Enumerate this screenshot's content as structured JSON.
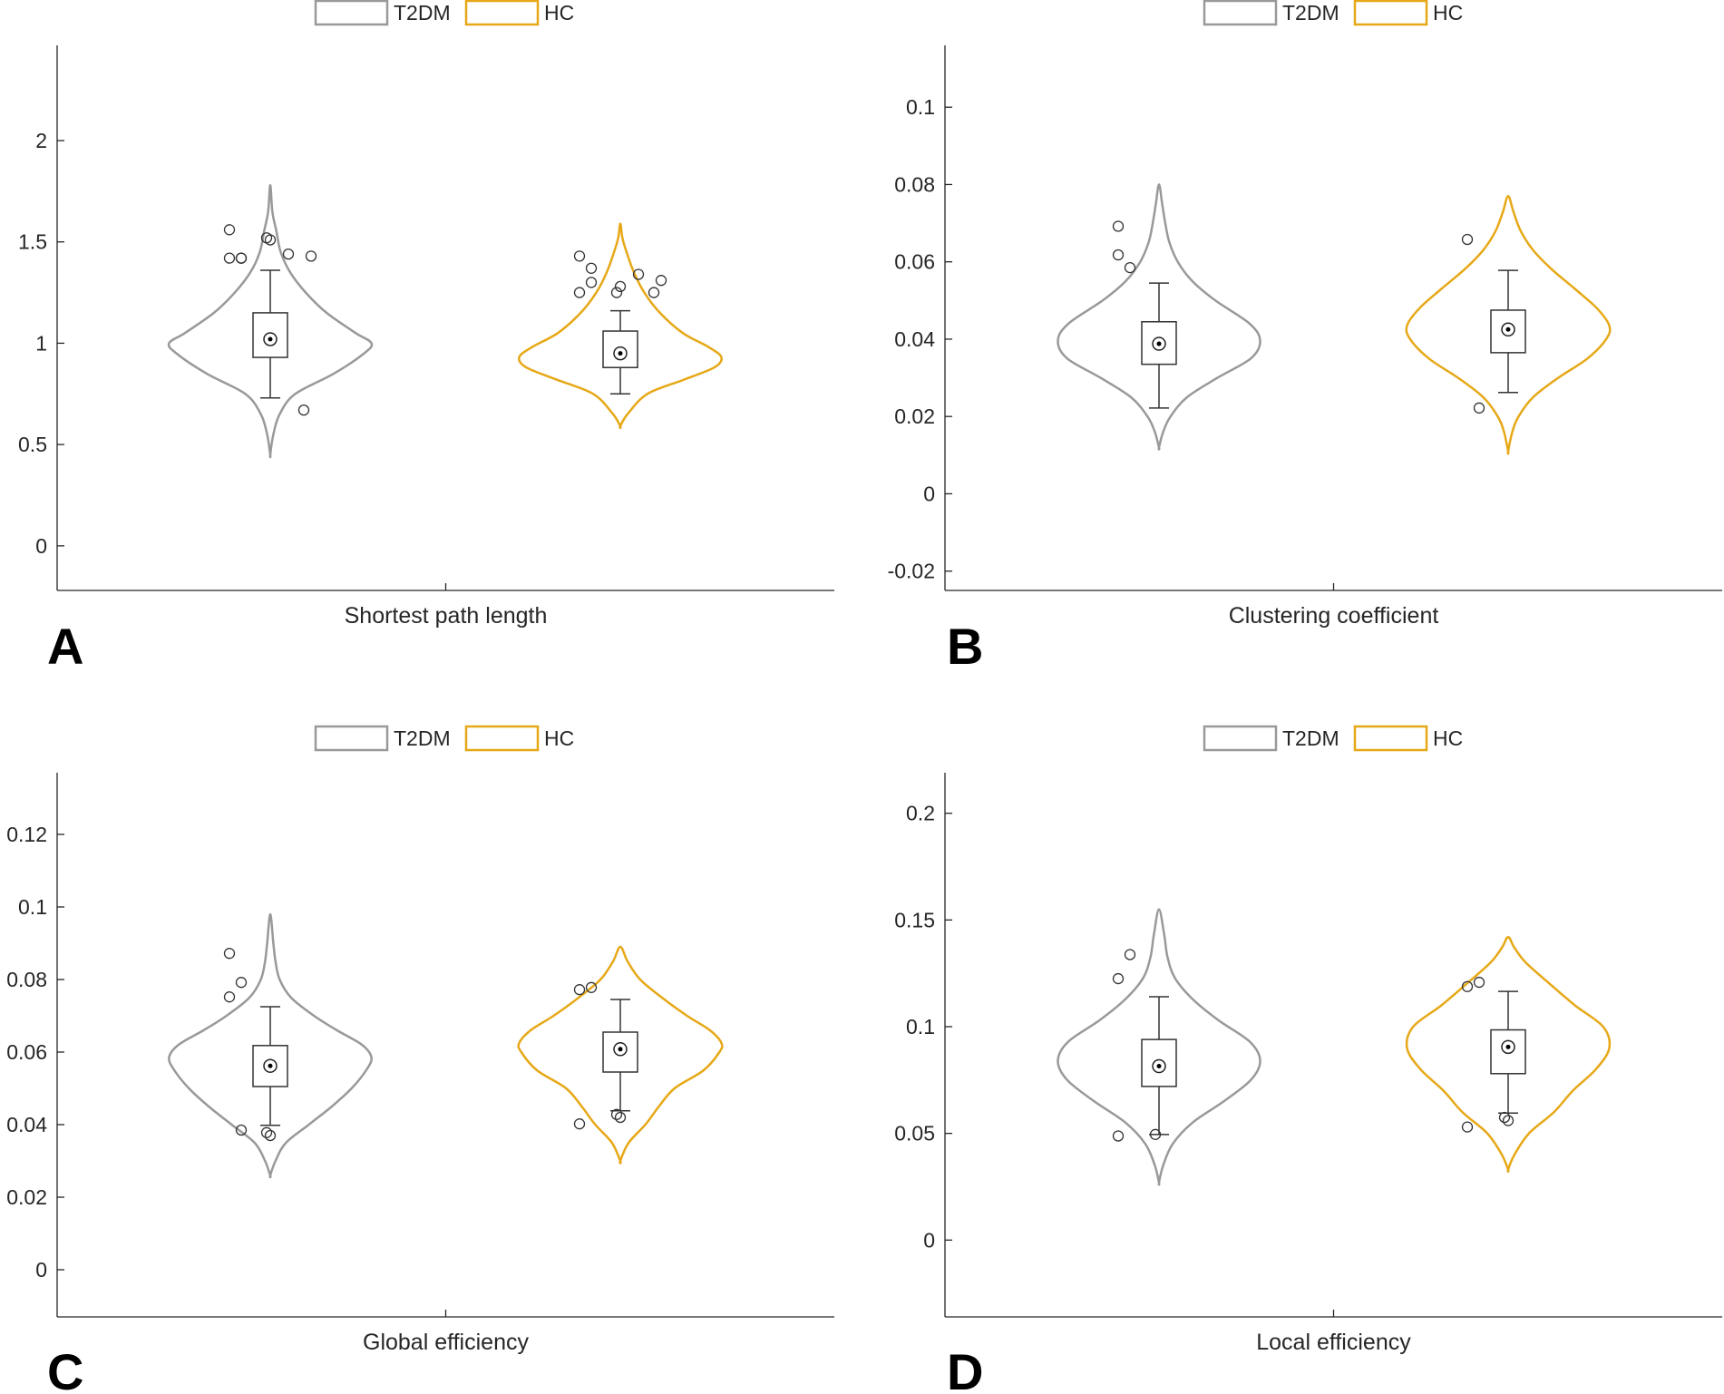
{
  "legend": {
    "entries": [
      "T2DM",
      "HC"
    ],
    "colors": [
      "#999999",
      "#E6A817"
    ]
  },
  "chart_data": [
    {
      "type": "violin",
      "panel": "A",
      "xlabel": "Shortest path length",
      "ylim": [
        -0.22,
        2.47
      ],
      "yticks": [
        0,
        0.5,
        1,
        1.5,
        2
      ],
      "yticklabels": [
        "0",
        "0.5",
        "1",
        "1.5",
        "2"
      ],
      "groups": [
        {
          "name": "T2DM",
          "color": "#999999",
          "median": 1.02,
          "q1": 0.93,
          "q3": 1.15,
          "whisker_low": 0.73,
          "whisker_high": 1.36,
          "violin": [
            [
              0.45,
              0.0
            ],
            [
              0.55,
              0.03
            ],
            [
              0.65,
              0.09
            ],
            [
              0.75,
              0.24
            ],
            [
              0.85,
              0.61
            ],
            [
              0.95,
              0.9
            ],
            [
              1.0,
              0.97
            ],
            [
              1.05,
              0.82
            ],
            [
              1.15,
              0.54
            ],
            [
              1.25,
              0.34
            ],
            [
              1.35,
              0.19
            ],
            [
              1.45,
              0.1
            ],
            [
              1.55,
              0.06
            ],
            [
              1.65,
              0.02
            ],
            [
              1.78,
              0.0
            ]
          ],
          "outliers": [
            1.56,
            1.42,
            1.42,
            1.52,
            1.51,
            1.42,
            1.44,
            1.43,
            0.67
          ]
        },
        {
          "name": "HC",
          "color": "#E6A817",
          "median": 0.95,
          "q1": 0.88,
          "q3": 1.06,
          "whisker_low": 0.75,
          "whisker_high": 1.16,
          "violin": [
            [
              0.59,
              0.0
            ],
            [
              0.65,
              0.07
            ],
            [
              0.75,
              0.26
            ],
            [
              0.82,
              0.61
            ],
            [
              0.88,
              0.9
            ],
            [
              0.93,
              0.97
            ],
            [
              0.98,
              0.85
            ],
            [
              1.05,
              0.6
            ],
            [
              1.15,
              0.38
            ],
            [
              1.25,
              0.23
            ],
            [
              1.35,
              0.13
            ],
            [
              1.45,
              0.06
            ],
            [
              1.52,
              0.02
            ],
            [
              1.59,
              0.0
            ]
          ],
          "outliers": [
            1.43,
            1.3,
            1.25,
            1.25,
            1.28,
            1.37,
            1.34,
            1.31,
            1.25
          ]
        }
      ]
    },
    {
      "type": "violin",
      "panel": "B",
      "xlabel": "Clustering coefficient",
      "ylim": [
        -0.025,
        0.116
      ],
      "yticks": [
        -0.02,
        0,
        0.02,
        0.04,
        0.06,
        0.08,
        0.1
      ],
      "yticklabels": [
        "-0.02",
        "0",
        "0.02",
        "0.04",
        "0.06",
        "0.08",
        "0.1"
      ],
      "groups": [
        {
          "name": "T2DM",
          "color": "#999999",
          "median": 0.0388,
          "q1": 0.0335,
          "q3": 0.0445,
          "whisker_low": 0.0222,
          "whisker_high": 0.0545,
          "violin": [
            [
              0.012,
              0.0
            ],
            [
              0.016,
              0.04
            ],
            [
              0.02,
              0.11
            ],
            [
              0.025,
              0.27
            ],
            [
              0.03,
              0.56
            ],
            [
              0.035,
              0.88
            ],
            [
              0.0395,
              0.97
            ],
            [
              0.044,
              0.87
            ],
            [
              0.05,
              0.54
            ],
            [
              0.055,
              0.32
            ],
            [
              0.06,
              0.18
            ],
            [
              0.065,
              0.1
            ],
            [
              0.07,
              0.06
            ],
            [
              0.075,
              0.03
            ],
            [
              0.08,
              0.0
            ]
          ],
          "outliers": [
            0.0618,
            0.0585,
            0.0692
          ]
        },
        {
          "name": "HC",
          "color": "#E6A817",
          "median": 0.0425,
          "q1": 0.0365,
          "q3": 0.0475,
          "whisker_low": 0.0262,
          "whisker_high": 0.0578,
          "violin": [
            [
              0.011,
              0.0
            ],
            [
              0.016,
              0.04
            ],
            [
              0.02,
              0.1
            ],
            [
              0.025,
              0.24
            ],
            [
              0.03,
              0.48
            ],
            [
              0.035,
              0.76
            ],
            [
              0.04,
              0.94
            ],
            [
              0.0435,
              0.97
            ],
            [
              0.048,
              0.85
            ],
            [
              0.053,
              0.64
            ],
            [
              0.058,
              0.42
            ],
            [
              0.063,
              0.24
            ],
            [
              0.068,
              0.12
            ],
            [
              0.073,
              0.05
            ],
            [
              0.077,
              0.0
            ]
          ],
          "outliers": [
            0.0658,
            0.0222
          ]
        }
      ]
    },
    {
      "type": "violin",
      "panel": "C",
      "xlabel": "Global efficiency",
      "ylim": [
        -0.013,
        0.137
      ],
      "yticks": [
        0,
        0.02,
        0.04,
        0.06,
        0.08,
        0.1,
        0.12
      ],
      "yticklabels": [
        "0",
        "0.02",
        "0.04",
        "0.06",
        "0.08",
        "0.1",
        "0.12"
      ],
      "groups": [
        {
          "name": "T2DM",
          "color": "#999999",
          "median": 0.0562,
          "q1": 0.0505,
          "q3": 0.0618,
          "whisker_low": 0.0398,
          "whisker_high": 0.0725,
          "violin": [
            [
              0.026,
              0.0
            ],
            [
              0.03,
              0.05
            ],
            [
              0.035,
              0.15
            ],
            [
              0.04,
              0.37
            ],
            [
              0.045,
              0.59
            ],
            [
              0.05,
              0.78
            ],
            [
              0.055,
              0.92
            ],
            [
              0.0585,
              0.97
            ],
            [
              0.062,
              0.88
            ],
            [
              0.066,
              0.64
            ],
            [
              0.07,
              0.42
            ],
            [
              0.075,
              0.2
            ],
            [
              0.08,
              0.09
            ],
            [
              0.085,
              0.05
            ],
            [
              0.09,
              0.03
            ],
            [
              0.098,
              0.0
            ]
          ],
          "outliers": [
            0.0872,
            0.0792,
            0.0752,
            0.0378,
            0.037,
            0.0385
          ]
        },
        {
          "name": "HC",
          "color": "#E6A817",
          "median": 0.0608,
          "q1": 0.0545,
          "q3": 0.0655,
          "whisker_low": 0.0438,
          "whisker_high": 0.0745,
          "violin": [
            [
              0.03,
              0.0
            ],
            [
              0.035,
              0.08
            ],
            [
              0.04,
              0.24
            ],
            [
              0.045,
              0.37
            ],
            [
              0.05,
              0.52
            ],
            [
              0.055,
              0.8
            ],
            [
              0.06,
              0.95
            ],
            [
              0.0625,
              0.97
            ],
            [
              0.066,
              0.86
            ],
            [
              0.07,
              0.64
            ],
            [
              0.075,
              0.4
            ],
            [
              0.08,
              0.19
            ],
            [
              0.085,
              0.07
            ],
            [
              0.089,
              0.0
            ]
          ],
          "outliers": [
            0.0772,
            0.0778,
            0.0402,
            0.0428,
            0.042
          ]
        }
      ]
    },
    {
      "type": "violin",
      "panel": "D",
      "xlabel": "Local efficiency",
      "ylim": [
        -0.036,
        0.219
      ],
      "yticks": [
        0,
        0.05,
        0.1,
        0.15,
        0.2
      ],
      "yticklabels": [
        "0",
        "0.05",
        "0.1",
        "0.15",
        "0.2"
      ],
      "groups": [
        {
          "name": "T2DM",
          "color": "#999999",
          "median": 0.0815,
          "q1": 0.072,
          "q3": 0.094,
          "whisker_low": 0.0495,
          "whisker_high": 0.114,
          "violin": [
            [
              0.027,
              0.0
            ],
            [
              0.035,
              0.04
            ],
            [
              0.045,
              0.13
            ],
            [
              0.055,
              0.32
            ],
            [
              0.065,
              0.62
            ],
            [
              0.075,
              0.88
            ],
            [
              0.084,
              0.97
            ],
            [
              0.093,
              0.87
            ],
            [
              0.103,
              0.57
            ],
            [
              0.113,
              0.32
            ],
            [
              0.123,
              0.15
            ],
            [
              0.133,
              0.08
            ],
            [
              0.143,
              0.05
            ],
            [
              0.155,
              0.0
            ]
          ],
          "outliers": [
            0.1225,
            0.1338,
            0.0488,
            0.0495
          ]
        },
        {
          "name": "HC",
          "color": "#E6A817",
          "median": 0.0905,
          "q1": 0.078,
          "q3": 0.0985,
          "whisker_low": 0.0595,
          "whisker_high": 0.1165,
          "violin": [
            [
              0.033,
              0.0
            ],
            [
              0.04,
              0.06
            ],
            [
              0.05,
              0.2
            ],
            [
              0.06,
              0.44
            ],
            [
              0.07,
              0.62
            ],
            [
              0.08,
              0.84
            ],
            [
              0.09,
              0.97
            ],
            [
              0.1,
              0.91
            ],
            [
              0.11,
              0.64
            ],
            [
              0.12,
              0.4
            ],
            [
              0.13,
              0.17
            ],
            [
              0.137,
              0.06
            ],
            [
              0.142,
              0.0
            ]
          ],
          "outliers": [
            0.1188,
            0.1208,
            0.053,
            0.0575,
            0.056
          ]
        }
      ]
    }
  ]
}
